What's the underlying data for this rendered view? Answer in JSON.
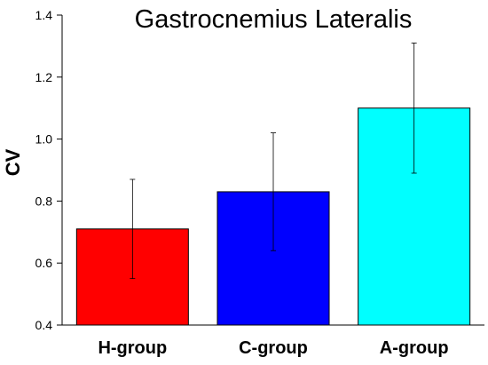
{
  "chart_data": {
    "type": "bar",
    "title": "Gastrocnemius Lateralis",
    "xlabel": "",
    "ylabel": "CV",
    "ylim": [
      0.4,
      1.4
    ],
    "yticks": [
      0.4,
      0.6,
      0.8,
      1.0,
      1.2,
      1.4
    ],
    "ytick_labels": [
      "0.4",
      "0.6",
      "0.8",
      "1.0",
      "1.2",
      "1.4"
    ],
    "categories": [
      "H-group",
      "C-group",
      "A-group"
    ],
    "values": [
      0.71,
      0.83,
      1.1
    ],
    "error_upper": [
      0.87,
      1.02,
      1.31
    ],
    "error_lower": [
      0.55,
      0.64,
      0.89
    ],
    "colors": [
      "#ff0000",
      "#0000ff",
      "#00ffff"
    ],
    "grid": false,
    "legend": "none"
  }
}
